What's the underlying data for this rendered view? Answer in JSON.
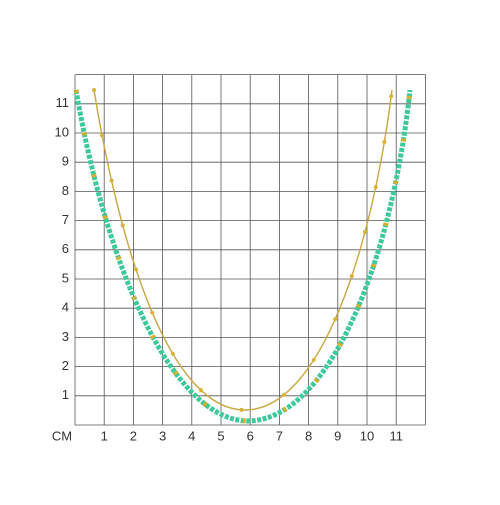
{
  "grid": {
    "unit": "CM",
    "x_labels": [
      1,
      2,
      3,
      4,
      5,
      6,
      7,
      8,
      9,
      10,
      11
    ],
    "y_labels": [
      1,
      2,
      3,
      4,
      5,
      6,
      7,
      8,
      9,
      10,
      11
    ]
  }
}
